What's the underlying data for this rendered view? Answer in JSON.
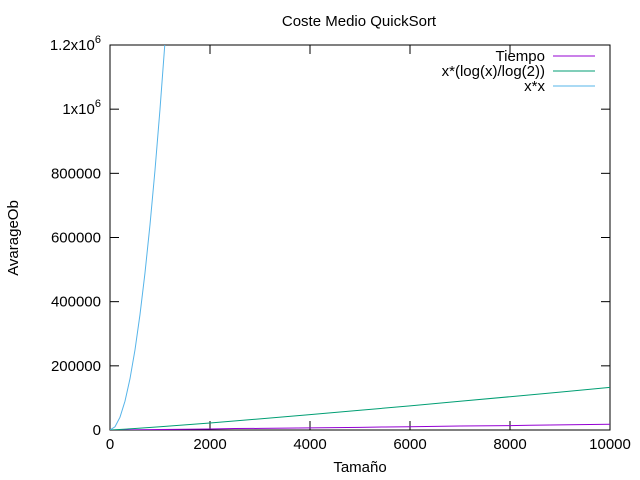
{
  "chart_data": {
    "type": "line",
    "title": "Coste Medio QuickSort",
    "xlabel": "Tamaño",
    "ylabel": "AvarageOb",
    "xlim": [
      0,
      10000
    ],
    "ylim": [
      0,
      1200000
    ],
    "x_ticks": [
      0,
      2000,
      4000,
      6000,
      8000,
      10000
    ],
    "x_tick_labels": [
      "0",
      "2000",
      "4000",
      "6000",
      "8000",
      "10000"
    ],
    "y_ticks": [
      0,
      200000,
      400000,
      600000,
      800000,
      1000000,
      1200000
    ],
    "y_tick_labels": [
      {
        "base": "0",
        "exp": ""
      },
      {
        "base": "200000",
        "exp": ""
      },
      {
        "base": "400000",
        "exp": ""
      },
      {
        "base": "600000",
        "exp": ""
      },
      {
        "base": "800000",
        "exp": ""
      },
      {
        "base": "1x10",
        "exp": "6"
      },
      {
        "base": "1.2x10",
        "exp": "6"
      }
    ],
    "grid": false,
    "legend_position": "top-right",
    "series": [
      {
        "name": "Tiempo",
        "color": "#9400d3",
        "x": [
          0,
          1000,
          2000,
          2500,
          3000,
          4000,
          5000,
          5500,
          6000,
          7000,
          8000,
          8400,
          9000,
          10000
        ],
        "y": [
          0,
          1500,
          3000,
          4500,
          5000,
          6500,
          8000,
          9500,
          10000,
          12500,
          13500,
          15000,
          16000,
          18000
        ]
      },
      {
        "name": "x*(log(x)/log(2))",
        "color": "#009e73",
        "x": [
          0,
          100,
          500,
          1000,
          2000,
          3000,
          4000,
          5000,
          6000,
          7000,
          8000,
          9000,
          10000
        ],
        "y": [
          0,
          664,
          4483,
          9966,
          21932,
          34652,
          47863,
          61439,
          75304,
          89412,
          103726,
          118221,
          132877
        ]
      },
      {
        "name": "x*x",
        "color": "#56b4e9",
        "x": [
          0,
          100,
          200,
          300,
          400,
          500,
          600,
          700,
          800,
          900,
          1000,
          1095.45
        ],
        "y": [
          0,
          10000,
          40000,
          90000,
          160000,
          250000,
          360000,
          490000,
          640000,
          810000,
          1000000,
          1200000
        ]
      }
    ]
  }
}
